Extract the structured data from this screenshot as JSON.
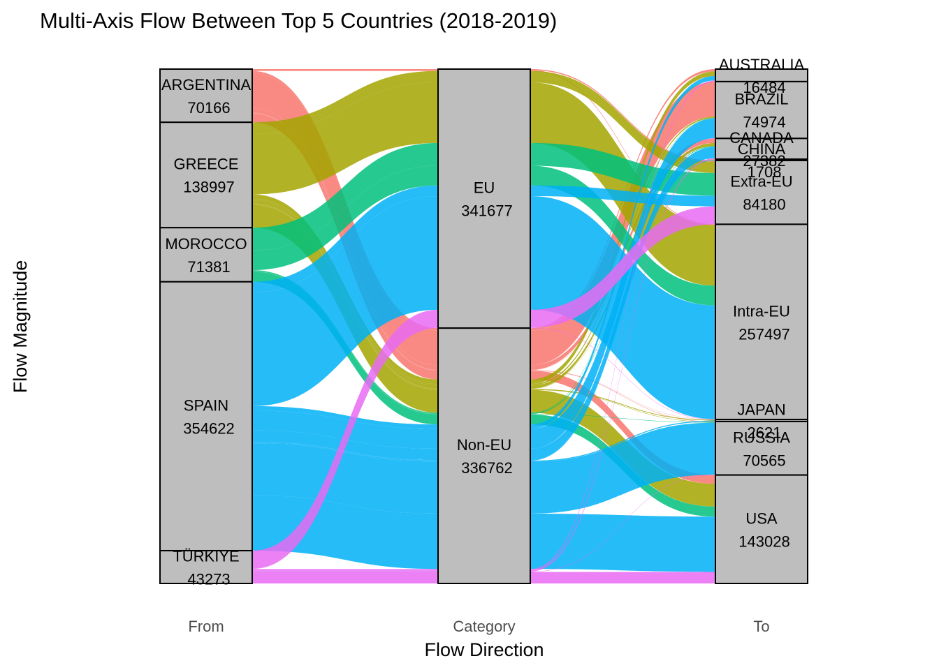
{
  "chart_data": {
    "type": "alluvial",
    "title": "Multi-Axis Flow Between Top 5 Countries (2018-2019)",
    "xlabel": "Flow Direction",
    "ylabel": "Flow Magnitude",
    "axes": [
      "From",
      "Category",
      "To"
    ],
    "colors": {
      "ARGENTINA": "#F8766D",
      "GREECE": "#A3A500",
      "MOROCCO": "#00BF7D",
      "SPAIN": "#00B0F6",
      "TÜRKIYE": "#E76BF3",
      "node_fill": "#BEBEBE"
    },
    "strata": {
      "From": [
        {
          "name": "ARGENTINA",
          "value": 70166
        },
        {
          "name": "GREECE",
          "value": 138997
        },
        {
          "name": "MOROCCO",
          "value": 71381
        },
        {
          "name": "SPAIN",
          "value": 354622
        },
        {
          "name": "TÜRKIYE",
          "value": 43273
        }
      ],
      "Category": [
        {
          "name": "EU",
          "value": 341677
        },
        {
          "name": "Non-EU",
          "value": 336762
        }
      ],
      "To": [
        {
          "name": "AUSTRALIA",
          "value": 16484
        },
        {
          "name": "BRAZIL",
          "value": 74974
        },
        {
          "name": "CANADA",
          "value": 27382
        },
        {
          "name": "CHINA",
          "value": 1708
        },
        {
          "name": "Extra-EU",
          "value": 84180
        },
        {
          "name": "Intra-EU",
          "value": 257497
        },
        {
          "name": "JAPAN",
          "value": 2621
        },
        {
          "name": "RUSSIA",
          "value": 70565
        },
        {
          "name": "USA",
          "value": 143028
        }
      ]
    },
    "flows": [
      {
        "from": "ARGENTINA",
        "category": "EU",
        "to": "Extra-EU",
        "value": 1500
      },
      {
        "from": "ARGENTINA",
        "category": "EU",
        "to": "Intra-EU",
        "value": 1000
      },
      {
        "from": "ARGENTINA",
        "category": "Non-EU",
        "to": "AUSTRALIA",
        "value": 3000
      },
      {
        "from": "ARGENTINA",
        "category": "Non-EU",
        "to": "BRAZIL",
        "value": 46000
      },
      {
        "from": "ARGENTINA",
        "category": "Non-EU",
        "to": "CANADA",
        "value": 6000
      },
      {
        "from": "ARGENTINA",
        "category": "Non-EU",
        "to": "CHINA",
        "value": 300
      },
      {
        "from": "ARGENTINA",
        "category": "Non-EU",
        "to": "JAPAN",
        "value": 300
      },
      {
        "from": "ARGENTINA",
        "category": "Non-EU",
        "to": "RUSSIA",
        "value": 500
      },
      {
        "from": "ARGENTINA",
        "category": "Non-EU",
        "to": "USA",
        "value": 11566
      },
      {
        "from": "GREECE",
        "category": "EU",
        "to": "Extra-EU",
        "value": 15000
      },
      {
        "from": "GREECE",
        "category": "EU",
        "to": "Intra-EU",
        "value": 80000
      },
      {
        "from": "GREECE",
        "category": "Non-EU",
        "to": "AUSTRALIA",
        "value": 6000
      },
      {
        "from": "GREECE",
        "category": "Non-EU",
        "to": "BRAZIL",
        "value": 2000
      },
      {
        "from": "GREECE",
        "category": "Non-EU",
        "to": "CANADA",
        "value": 4000
      },
      {
        "from": "GREECE",
        "category": "Non-EU",
        "to": "CHINA",
        "value": 400
      },
      {
        "from": "GREECE",
        "category": "Non-EU",
        "to": "JAPAN",
        "value": 1000
      },
      {
        "from": "GREECE",
        "category": "Non-EU",
        "to": "RUSSIA",
        "value": 500
      },
      {
        "from": "GREECE",
        "category": "Non-EU",
        "to": "USA",
        "value": 30097
      },
      {
        "from": "MOROCCO",
        "category": "EU",
        "to": "Extra-EU",
        "value": 30000
      },
      {
        "from": "MOROCCO",
        "category": "EU",
        "to": "Intra-EU",
        "value": 26000
      },
      {
        "from": "MOROCCO",
        "category": "Non-EU",
        "to": "BRAZIL",
        "value": 500
      },
      {
        "from": "MOROCCO",
        "category": "Non-EU",
        "to": "CANADA",
        "value": 1000
      },
      {
        "from": "MOROCCO",
        "category": "Non-EU",
        "to": "CHINA",
        "value": 200
      },
      {
        "from": "MOROCCO",
        "category": "Non-EU",
        "to": "RUSSIA",
        "value": 500
      },
      {
        "from": "MOROCCO",
        "category": "Non-EU",
        "to": "USA",
        "value": 13181
      },
      {
        "from": "SPAIN",
        "category": "EU",
        "to": "Extra-EU",
        "value": 14000
      },
      {
        "from": "SPAIN",
        "category": "EU",
        "to": "Intra-EU",
        "value": 150000
      },
      {
        "from": "SPAIN",
        "category": "Non-EU",
        "to": "AUSTRALIA",
        "value": 6000
      },
      {
        "from": "SPAIN",
        "category": "Non-EU",
        "to": "BRAZIL",
        "value": 26000
      },
      {
        "from": "SPAIN",
        "category": "Non-EU",
        "to": "CANADA",
        "value": 15000
      },
      {
        "from": "SPAIN",
        "category": "Non-EU",
        "to": "CHINA",
        "value": 700
      },
      {
        "from": "SPAIN",
        "category": "Non-EU",
        "to": "JAPAN",
        "value": 1300
      },
      {
        "from": "SPAIN",
        "category": "Non-EU",
        "to": "RUSSIA",
        "value": 68622
      },
      {
        "from": "SPAIN",
        "category": "Non-EU",
        "to": "USA",
        "value": 73000
      },
      {
        "from": "TÜRKIYE",
        "category": "EU",
        "to": "Extra-EU",
        "value": 23680
      },
      {
        "from": "TÜRKIYE",
        "category": "EU",
        "to": "Intra-EU",
        "value": 497
      },
      {
        "from": "TÜRKIYE",
        "category": "Non-EU",
        "to": "AUSTRALIA",
        "value": 1484
      },
      {
        "from": "TÜRKIYE",
        "category": "Non-EU",
        "to": "BRAZIL",
        "value": 474
      },
      {
        "from": "TÜRKIYE",
        "category": "Non-EU",
        "to": "CANADA",
        "value": 1382
      },
      {
        "from": "TÜRKIYE",
        "category": "Non-EU",
        "to": "CHINA",
        "value": 108
      },
      {
        "from": "TÜRKIYE",
        "category": "Non-EU",
        "to": "JAPAN",
        "value": 21
      },
      {
        "from": "TÜRKIYE",
        "category": "Non-EU",
        "to": "RUSSIA",
        "value": 443
      },
      {
        "from": "TÜRKIYE",
        "category": "Non-EU",
        "to": "USA",
        "value": 15184
      }
    ]
  }
}
